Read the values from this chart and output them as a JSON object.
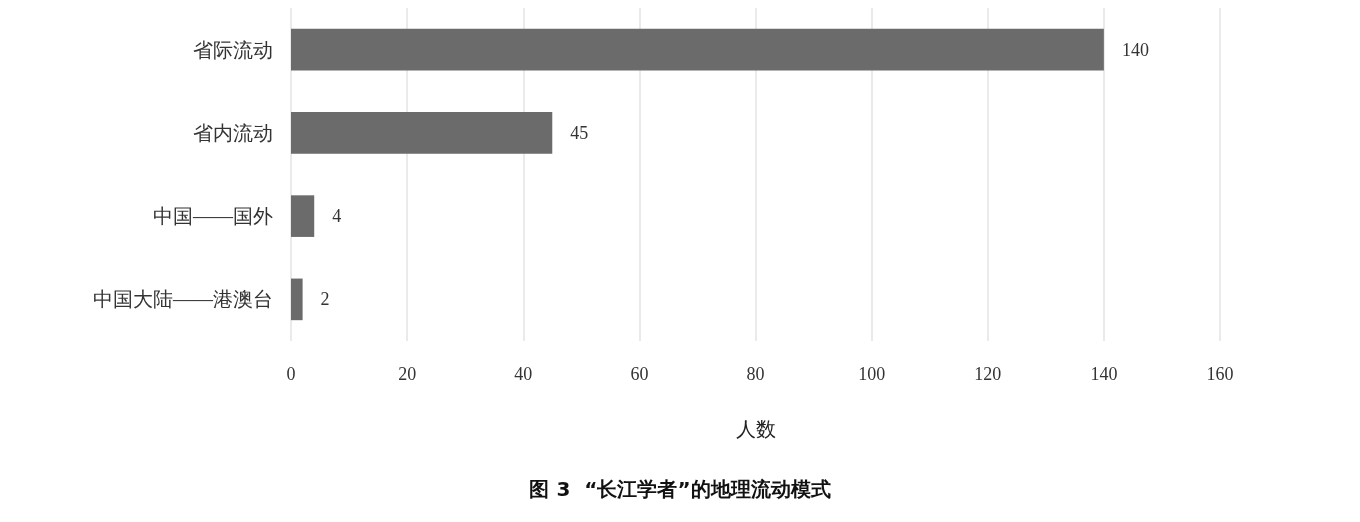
{
  "chart_data": {
    "type": "bar",
    "orientation": "horizontal",
    "title": "图 3  “长江学者”的地理流动模式",
    "xlabel": "人数",
    "categories": [
      "省际流动",
      "省内流动",
      "中国——国外",
      "中国大陆——港澳台"
    ],
    "values": [
      140,
      45,
      4,
      2
    ],
    "color": "#6b6b6b",
    "xlim": [
      0,
      160
    ],
    "xticks": [
      0,
      20,
      40,
      60,
      80,
      100,
      120,
      140,
      160
    ],
    "grid": "x",
    "data_labels": true
  }
}
